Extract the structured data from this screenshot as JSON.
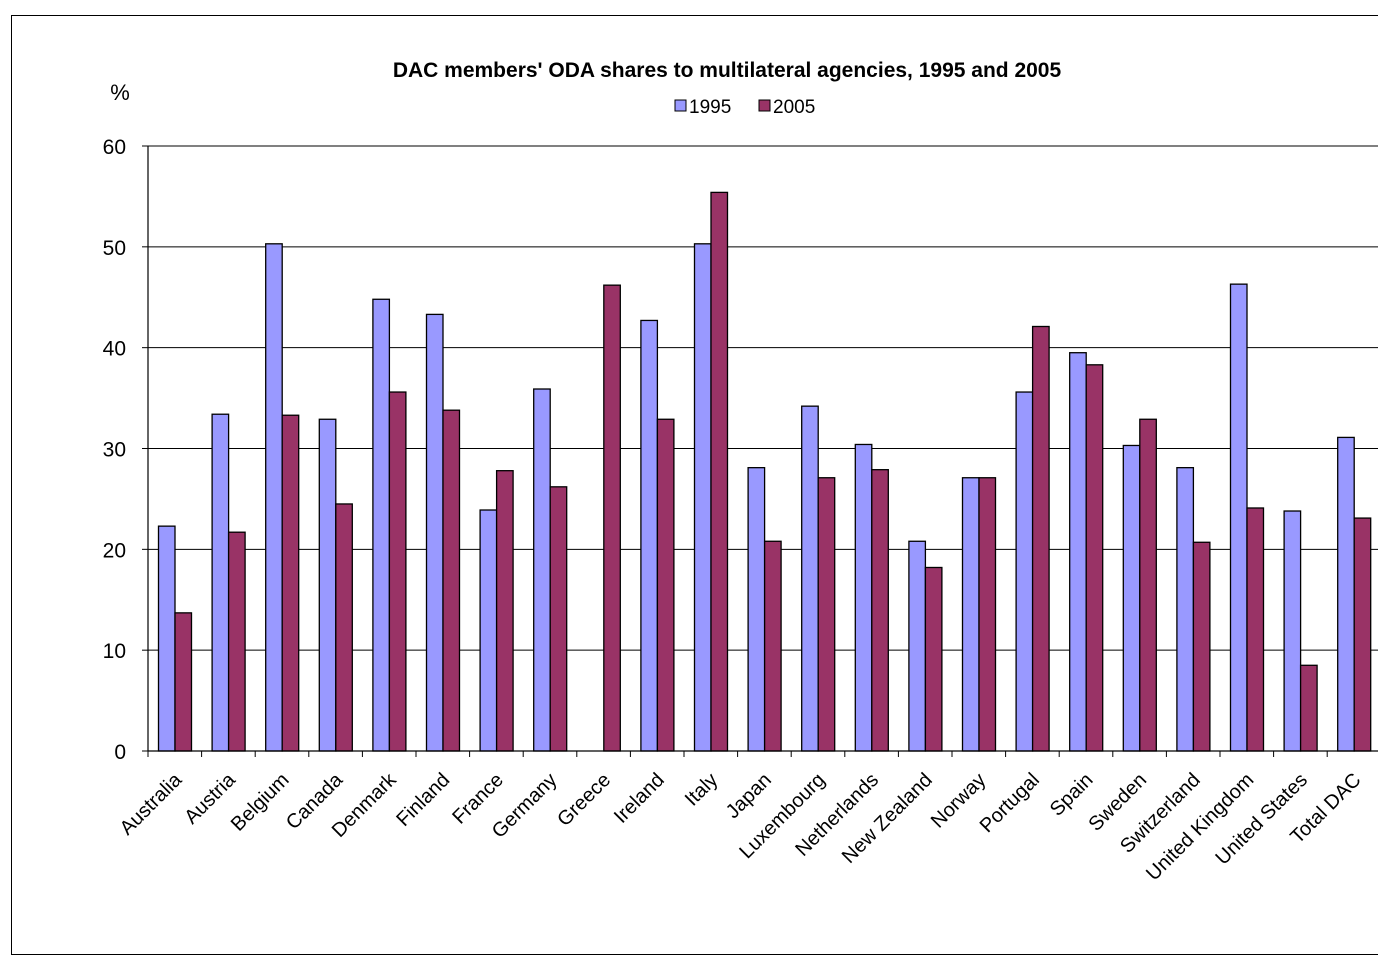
{
  "chart_data": {
    "type": "bar",
    "title": "DAC members' ODA shares to multilateral agencies, 1995 and 2005",
    "ylabel": "%",
    "xlabel": "",
    "ylim": [
      0,
      60
    ],
    "yticks": [
      0,
      10,
      20,
      30,
      40,
      50,
      60
    ],
    "grid": true,
    "legend_position": "top-center",
    "categories": [
      "Australia",
      "Austria",
      "Belgium",
      "Canada",
      "Denmark",
      "Finland",
      "France",
      "Germany",
      "Greece",
      "Ireland",
      "Italy",
      "Japan",
      "Luxembourg",
      "Netherlands",
      "New Zealand",
      "Norway",
      "Portugal",
      "Spain",
      "Sweden",
      "Switzerland",
      "United Kingdom",
      "United States",
      "Total DAC"
    ],
    "series": [
      {
        "name": "1995",
        "color": "#9999ff",
        "values": [
          22.3,
          33.4,
          50.3,
          32.9,
          44.8,
          43.3,
          23.9,
          35.9,
          null,
          42.7,
          50.3,
          28.1,
          34.2,
          30.4,
          20.8,
          27.1,
          35.6,
          39.5,
          30.3,
          28.1,
          46.3,
          23.8,
          31.1
        ]
      },
      {
        "name": "2005",
        "color": "#993366",
        "values": [
          13.7,
          21.7,
          33.3,
          24.5,
          35.6,
          33.8,
          27.8,
          26.2,
          46.2,
          32.9,
          55.4,
          20.8,
          27.1,
          27.9,
          18.2,
          27.1,
          42.1,
          38.3,
          32.9,
          20.7,
          24.1,
          8.5,
          23.1
        ]
      }
    ]
  }
}
